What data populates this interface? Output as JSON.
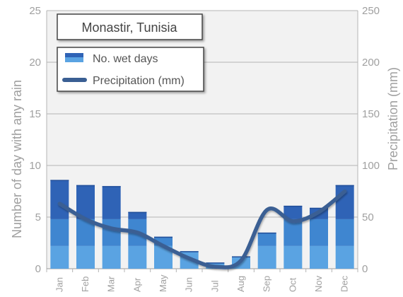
{
  "chart_data": {
    "type": "bar",
    "title": "Monastir, Tunisia",
    "categories": [
      "Jan",
      "Feb",
      "Mar",
      "Apr",
      "May",
      "Jun",
      "Jul",
      "Aug",
      "Sep",
      "Oct",
      "Nov",
      "Dec"
    ],
    "series": [
      {
        "name": "No. wet days",
        "type": "bar",
        "axis": "left",
        "values": [
          8.6,
          8.1,
          8.0,
          5.5,
          3.1,
          1.7,
          0.6,
          1.2,
          3.5,
          6.1,
          5.9,
          8.1
        ]
      },
      {
        "name": "Precipitation (mm)",
        "type": "line",
        "axis": "right",
        "values": [
          63,
          48,
          39,
          35,
          22,
          10,
          2,
          8,
          57,
          46,
          55,
          75
        ]
      }
    ],
    "ylabel_left": "Number of day with any rain",
    "ylabel_right": "Precipitation  (mm)",
    "ylim_left": [
      0,
      25
    ],
    "ylim_right": [
      0,
      250
    ],
    "yticks_left": [
      "0",
      "5",
      "10",
      "15",
      "20",
      "25"
    ],
    "yticks_right": [
      "0",
      "50",
      "100",
      "150",
      "200",
      "250"
    ],
    "grid": true,
    "legend_placement": "top-left",
    "colors": {
      "bar_top": "#2f63b6",
      "bar_mid": "#3f86d0",
      "bar_low": "#5aa3e2",
      "line": "#3a5f93",
      "plot_bg": "#f2f2f2",
      "grid": "#b4b4b4"
    }
  }
}
